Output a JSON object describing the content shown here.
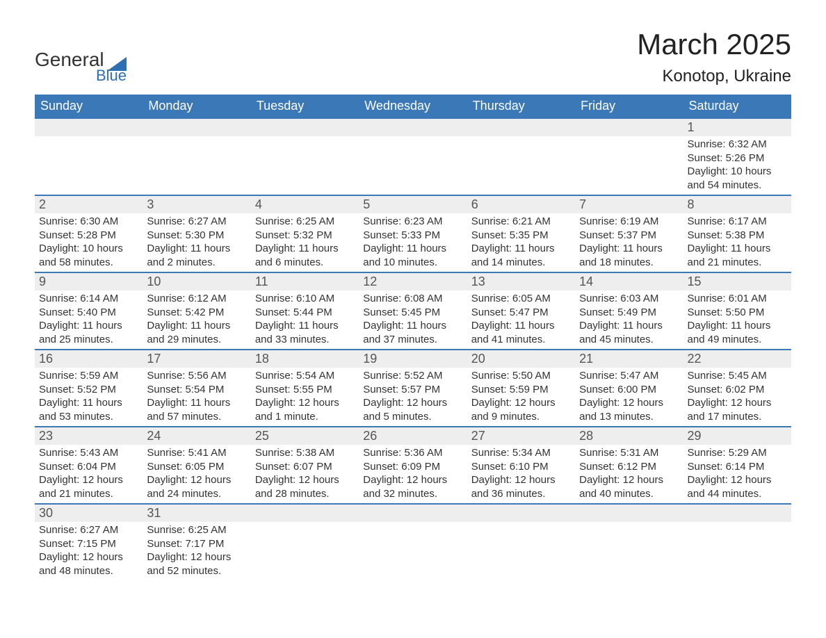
{
  "logo": {
    "word1": "General",
    "word2": "Blue"
  },
  "title": "March 2025",
  "location": "Konotop, Ukraine",
  "columns": [
    "Sunday",
    "Monday",
    "Tuesday",
    "Wednesday",
    "Thursday",
    "Friday",
    "Saturday"
  ],
  "colors": {
    "header_bg": "#3b78b8",
    "header_text": "#ffffff",
    "daynum_bg": "#eeeeee",
    "row_border": "#3b78b8",
    "logo_blue": "#2d6fb5",
    "text": "#333333",
    "background": "#ffffff"
  },
  "fonts": {
    "title_size_pt": 42,
    "location_size_pt": 24,
    "header_size_pt": 18,
    "daynum_size_pt": 18,
    "body_size_pt": 15
  },
  "weeks": [
    [
      null,
      null,
      null,
      null,
      null,
      null,
      {
        "day": "1",
        "sunrise": "Sunrise: 6:32 AM",
        "sunset": "Sunset: 5:26 PM",
        "daylight": "Daylight: 10 hours and 54 minutes."
      }
    ],
    [
      {
        "day": "2",
        "sunrise": "Sunrise: 6:30 AM",
        "sunset": "Sunset: 5:28 PM",
        "daylight": "Daylight: 10 hours and 58 minutes."
      },
      {
        "day": "3",
        "sunrise": "Sunrise: 6:27 AM",
        "sunset": "Sunset: 5:30 PM",
        "daylight": "Daylight: 11 hours and 2 minutes."
      },
      {
        "day": "4",
        "sunrise": "Sunrise: 6:25 AM",
        "sunset": "Sunset: 5:32 PM",
        "daylight": "Daylight: 11 hours and 6 minutes."
      },
      {
        "day": "5",
        "sunrise": "Sunrise: 6:23 AM",
        "sunset": "Sunset: 5:33 PM",
        "daylight": "Daylight: 11 hours and 10 minutes."
      },
      {
        "day": "6",
        "sunrise": "Sunrise: 6:21 AM",
        "sunset": "Sunset: 5:35 PM",
        "daylight": "Daylight: 11 hours and 14 minutes."
      },
      {
        "day": "7",
        "sunrise": "Sunrise: 6:19 AM",
        "sunset": "Sunset: 5:37 PM",
        "daylight": "Daylight: 11 hours and 18 minutes."
      },
      {
        "day": "8",
        "sunrise": "Sunrise: 6:17 AM",
        "sunset": "Sunset: 5:38 PM",
        "daylight": "Daylight: 11 hours and 21 minutes."
      }
    ],
    [
      {
        "day": "9",
        "sunrise": "Sunrise: 6:14 AM",
        "sunset": "Sunset: 5:40 PM",
        "daylight": "Daylight: 11 hours and 25 minutes."
      },
      {
        "day": "10",
        "sunrise": "Sunrise: 6:12 AM",
        "sunset": "Sunset: 5:42 PM",
        "daylight": "Daylight: 11 hours and 29 minutes."
      },
      {
        "day": "11",
        "sunrise": "Sunrise: 6:10 AM",
        "sunset": "Sunset: 5:44 PM",
        "daylight": "Daylight: 11 hours and 33 minutes."
      },
      {
        "day": "12",
        "sunrise": "Sunrise: 6:08 AM",
        "sunset": "Sunset: 5:45 PM",
        "daylight": "Daylight: 11 hours and 37 minutes."
      },
      {
        "day": "13",
        "sunrise": "Sunrise: 6:05 AM",
        "sunset": "Sunset: 5:47 PM",
        "daylight": "Daylight: 11 hours and 41 minutes."
      },
      {
        "day": "14",
        "sunrise": "Sunrise: 6:03 AM",
        "sunset": "Sunset: 5:49 PM",
        "daylight": "Daylight: 11 hours and 45 minutes."
      },
      {
        "day": "15",
        "sunrise": "Sunrise: 6:01 AM",
        "sunset": "Sunset: 5:50 PM",
        "daylight": "Daylight: 11 hours and 49 minutes."
      }
    ],
    [
      {
        "day": "16",
        "sunrise": "Sunrise: 5:59 AM",
        "sunset": "Sunset: 5:52 PM",
        "daylight": "Daylight: 11 hours and 53 minutes."
      },
      {
        "day": "17",
        "sunrise": "Sunrise: 5:56 AM",
        "sunset": "Sunset: 5:54 PM",
        "daylight": "Daylight: 11 hours and 57 minutes."
      },
      {
        "day": "18",
        "sunrise": "Sunrise: 5:54 AM",
        "sunset": "Sunset: 5:55 PM",
        "daylight": "Daylight: 12 hours and 1 minute."
      },
      {
        "day": "19",
        "sunrise": "Sunrise: 5:52 AM",
        "sunset": "Sunset: 5:57 PM",
        "daylight": "Daylight: 12 hours and 5 minutes."
      },
      {
        "day": "20",
        "sunrise": "Sunrise: 5:50 AM",
        "sunset": "Sunset: 5:59 PM",
        "daylight": "Daylight: 12 hours and 9 minutes."
      },
      {
        "day": "21",
        "sunrise": "Sunrise: 5:47 AM",
        "sunset": "Sunset: 6:00 PM",
        "daylight": "Daylight: 12 hours and 13 minutes."
      },
      {
        "day": "22",
        "sunrise": "Sunrise: 5:45 AM",
        "sunset": "Sunset: 6:02 PM",
        "daylight": "Daylight: 12 hours and 17 minutes."
      }
    ],
    [
      {
        "day": "23",
        "sunrise": "Sunrise: 5:43 AM",
        "sunset": "Sunset: 6:04 PM",
        "daylight": "Daylight: 12 hours and 21 minutes."
      },
      {
        "day": "24",
        "sunrise": "Sunrise: 5:41 AM",
        "sunset": "Sunset: 6:05 PM",
        "daylight": "Daylight: 12 hours and 24 minutes."
      },
      {
        "day": "25",
        "sunrise": "Sunrise: 5:38 AM",
        "sunset": "Sunset: 6:07 PM",
        "daylight": "Daylight: 12 hours and 28 minutes."
      },
      {
        "day": "26",
        "sunrise": "Sunrise: 5:36 AM",
        "sunset": "Sunset: 6:09 PM",
        "daylight": "Daylight: 12 hours and 32 minutes."
      },
      {
        "day": "27",
        "sunrise": "Sunrise: 5:34 AM",
        "sunset": "Sunset: 6:10 PM",
        "daylight": "Daylight: 12 hours and 36 minutes."
      },
      {
        "day": "28",
        "sunrise": "Sunrise: 5:31 AM",
        "sunset": "Sunset: 6:12 PM",
        "daylight": "Daylight: 12 hours and 40 minutes."
      },
      {
        "day": "29",
        "sunrise": "Sunrise: 5:29 AM",
        "sunset": "Sunset: 6:14 PM",
        "daylight": "Daylight: 12 hours and 44 minutes."
      }
    ],
    [
      {
        "day": "30",
        "sunrise": "Sunrise: 6:27 AM",
        "sunset": "Sunset: 7:15 PM",
        "daylight": "Daylight: 12 hours and 48 minutes."
      },
      {
        "day": "31",
        "sunrise": "Sunrise: 6:25 AM",
        "sunset": "Sunset: 7:17 PM",
        "daylight": "Daylight: 12 hours and 52 minutes."
      },
      null,
      null,
      null,
      null,
      null
    ]
  ]
}
